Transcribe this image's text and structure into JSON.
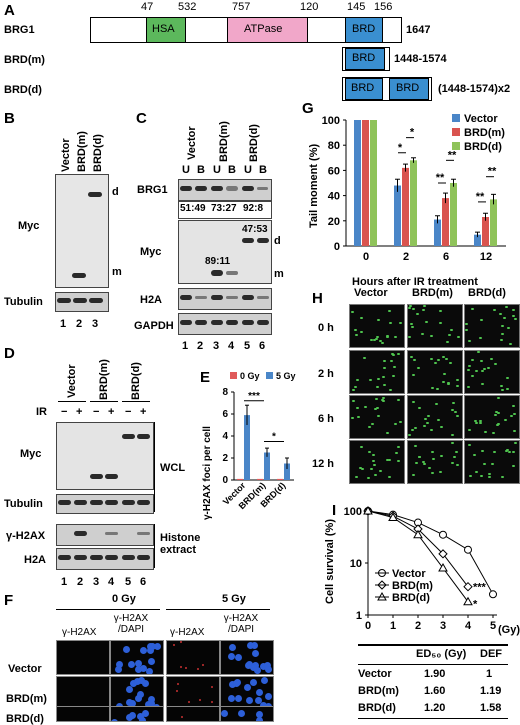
{
  "panelA": {
    "label": "A",
    "ticks": [
      "47",
      "532",
      "757",
      "120",
      "145",
      "156"
    ],
    "brg1": {
      "name": "BRG1",
      "length": "1647",
      "domains": [
        "HSA",
        "ATPase",
        "BRD"
      ]
    },
    "brdm": {
      "name": "BRD(m)",
      "range": "1448-1574",
      "domain": "BRD"
    },
    "brdd": {
      "name": "BRD(d)",
      "range": "(1448-1574)x2",
      "domain": "BRD"
    },
    "colors": {
      "hsa": "#5cb85c",
      "atpase": "#f1a7c9",
      "brd": "#3a8fd0"
    }
  },
  "panelB": {
    "label": "B",
    "lanes": [
      "Vector",
      "BRD(m)",
      "BRD(d)"
    ],
    "rows": [
      "Myc",
      "Tubulin"
    ],
    "marks": [
      "d",
      "m"
    ],
    "lane_numbers": [
      "1",
      "2",
      "3"
    ]
  },
  "panelC": {
    "label": "C",
    "lanes": [
      "Vector",
      "BRD(m)",
      "BRD(d)"
    ],
    "ub": [
      "U",
      "B",
      "U",
      "B",
      "U",
      "B"
    ],
    "rows": [
      "BRG1",
      "Myc",
      "H2A",
      "GAPDH"
    ],
    "ratios": [
      "51:49",
      "73:27",
      "92:8"
    ],
    "myc_ratios": [
      "89:11",
      "47:53"
    ],
    "marks": [
      "d",
      "m"
    ],
    "lane_numbers": [
      "1",
      "2",
      "3",
      "4",
      "5",
      "6"
    ]
  },
  "panelD": {
    "label": "D",
    "lanes": [
      "Vector",
      "BRD(m)",
      "BRD(d)"
    ],
    "ir_label": "IR",
    "ir": [
      "−",
      "+",
      "−",
      "+",
      "−",
      "+"
    ],
    "rows": [
      "Myc",
      "Tubulin",
      "γ-H2AX",
      "H2A"
    ],
    "groups": [
      "WCL",
      "Histone extract"
    ],
    "lane_numbers": [
      "1",
      "2",
      "3",
      "4",
      "5",
      "6"
    ]
  },
  "panelE": {
    "label": "E",
    "chart_data": {
      "type": "bar",
      "categories": [
        "Vector",
        "BRD(m)",
        "BRD(d)"
      ],
      "series": [
        {
          "name": "0 Gy",
          "values": [
            0.1,
            0.1,
            0.1
          ],
          "color": "#e05a5a"
        },
        {
          "name": "5 Gy",
          "values": [
            5.9,
            2.5,
            1.5
          ],
          "color": "#4a86c8"
        }
      ],
      "errors": [
        0.9,
        0.4,
        0.5
      ],
      "ylabel": "γ-H2AX foci per cell",
      "yticks": [
        "0",
        "2",
        "4",
        "6",
        "8"
      ],
      "ylim": [
        0,
        8
      ],
      "significance": [
        "***",
        "*"
      ]
    }
  },
  "panelF": {
    "label": "F",
    "doses": [
      "0 Gy",
      "5 Gy"
    ],
    "cols": [
      "γ-H2AX",
      "γ-H2AX /DAPI",
      "γ-H2AX",
      "γ-H2AX /DAPI"
    ],
    "rows": [
      "Vector",
      "BRD(m)",
      "BRD(d)"
    ]
  },
  "panelG": {
    "label": "G",
    "chart_data": {
      "type": "bar",
      "categories": [
        "0",
        "2",
        "6",
        "12"
      ],
      "series": [
        {
          "name": "Vector",
          "values": [
            100,
            48,
            21,
            9
          ],
          "color": "#4a86c8"
        },
        {
          "name": "BRD(m)",
          "values": [
            100,
            62,
            38,
            23
          ],
          "color": "#d9534f"
        },
        {
          "name": "BRD(d)",
          "values": [
            100,
            68,
            50,
            37
          ],
          "color": "#8fc35a"
        }
      ],
      "errors": [
        [
          0,
          0,
          0,
          0
        ],
        [
          5,
          3,
          2,
          1
        ],
        [
          3,
          4,
          3,
          3
        ],
        [
          2,
          3,
          4,
          3
        ]
      ],
      "xlabel": "Hours after IR treatment",
      "ylabel": "Tail moment (%)",
      "yticks": [
        "0",
        "20",
        "40",
        "60",
        "80",
        "100"
      ],
      "ylim": [
        0,
        100
      ],
      "significance": [
        "*",
        "*",
        "**",
        "**",
        "**",
        "**"
      ]
    }
  },
  "panelH": {
    "label": "H",
    "cols": [
      "Vector",
      "BRD(m)",
      "BRD(d)"
    ],
    "rows": [
      "0 h",
      "2 h",
      "6 h",
      "12 h"
    ]
  },
  "panelI": {
    "label": "I",
    "chart_data": {
      "type": "line",
      "x": [
        0,
        1,
        2,
        3,
        4,
        5
      ],
      "series": [
        {
          "name": "Vector",
          "values": [
            100,
            85,
            60,
            35,
            18,
            2.5
          ],
          "marker": "circle-open"
        },
        {
          "name": "BRD(m)",
          "values": [
            100,
            80,
            45,
            15,
            3.5,
            null
          ],
          "marker": "diamond-open"
        },
        {
          "name": "BRD(d)",
          "values": [
            100,
            75,
            35,
            8,
            1.8,
            null
          ],
          "marker": "triangle-open"
        }
      ],
      "xlabel": "(Gy)",
      "ylabel": "Cell survival (%)",
      "xticks": [
        "0",
        "1",
        "2",
        "3",
        "4",
        "5"
      ],
      "yticks": [
        "1",
        "10",
        "100"
      ],
      "yscale": "log",
      "significance": [
        "***",
        "*"
      ]
    },
    "table": {
      "headers": [
        "",
        "ED₅₀ (Gy)",
        "DEF"
      ],
      "rows": [
        [
          "Vector",
          "1.90",
          "1"
        ],
        [
          "BRD(m)",
          "1.60",
          "1.19"
        ],
        [
          "BRD(d)",
          "1.20",
          "1.58"
        ]
      ]
    }
  }
}
